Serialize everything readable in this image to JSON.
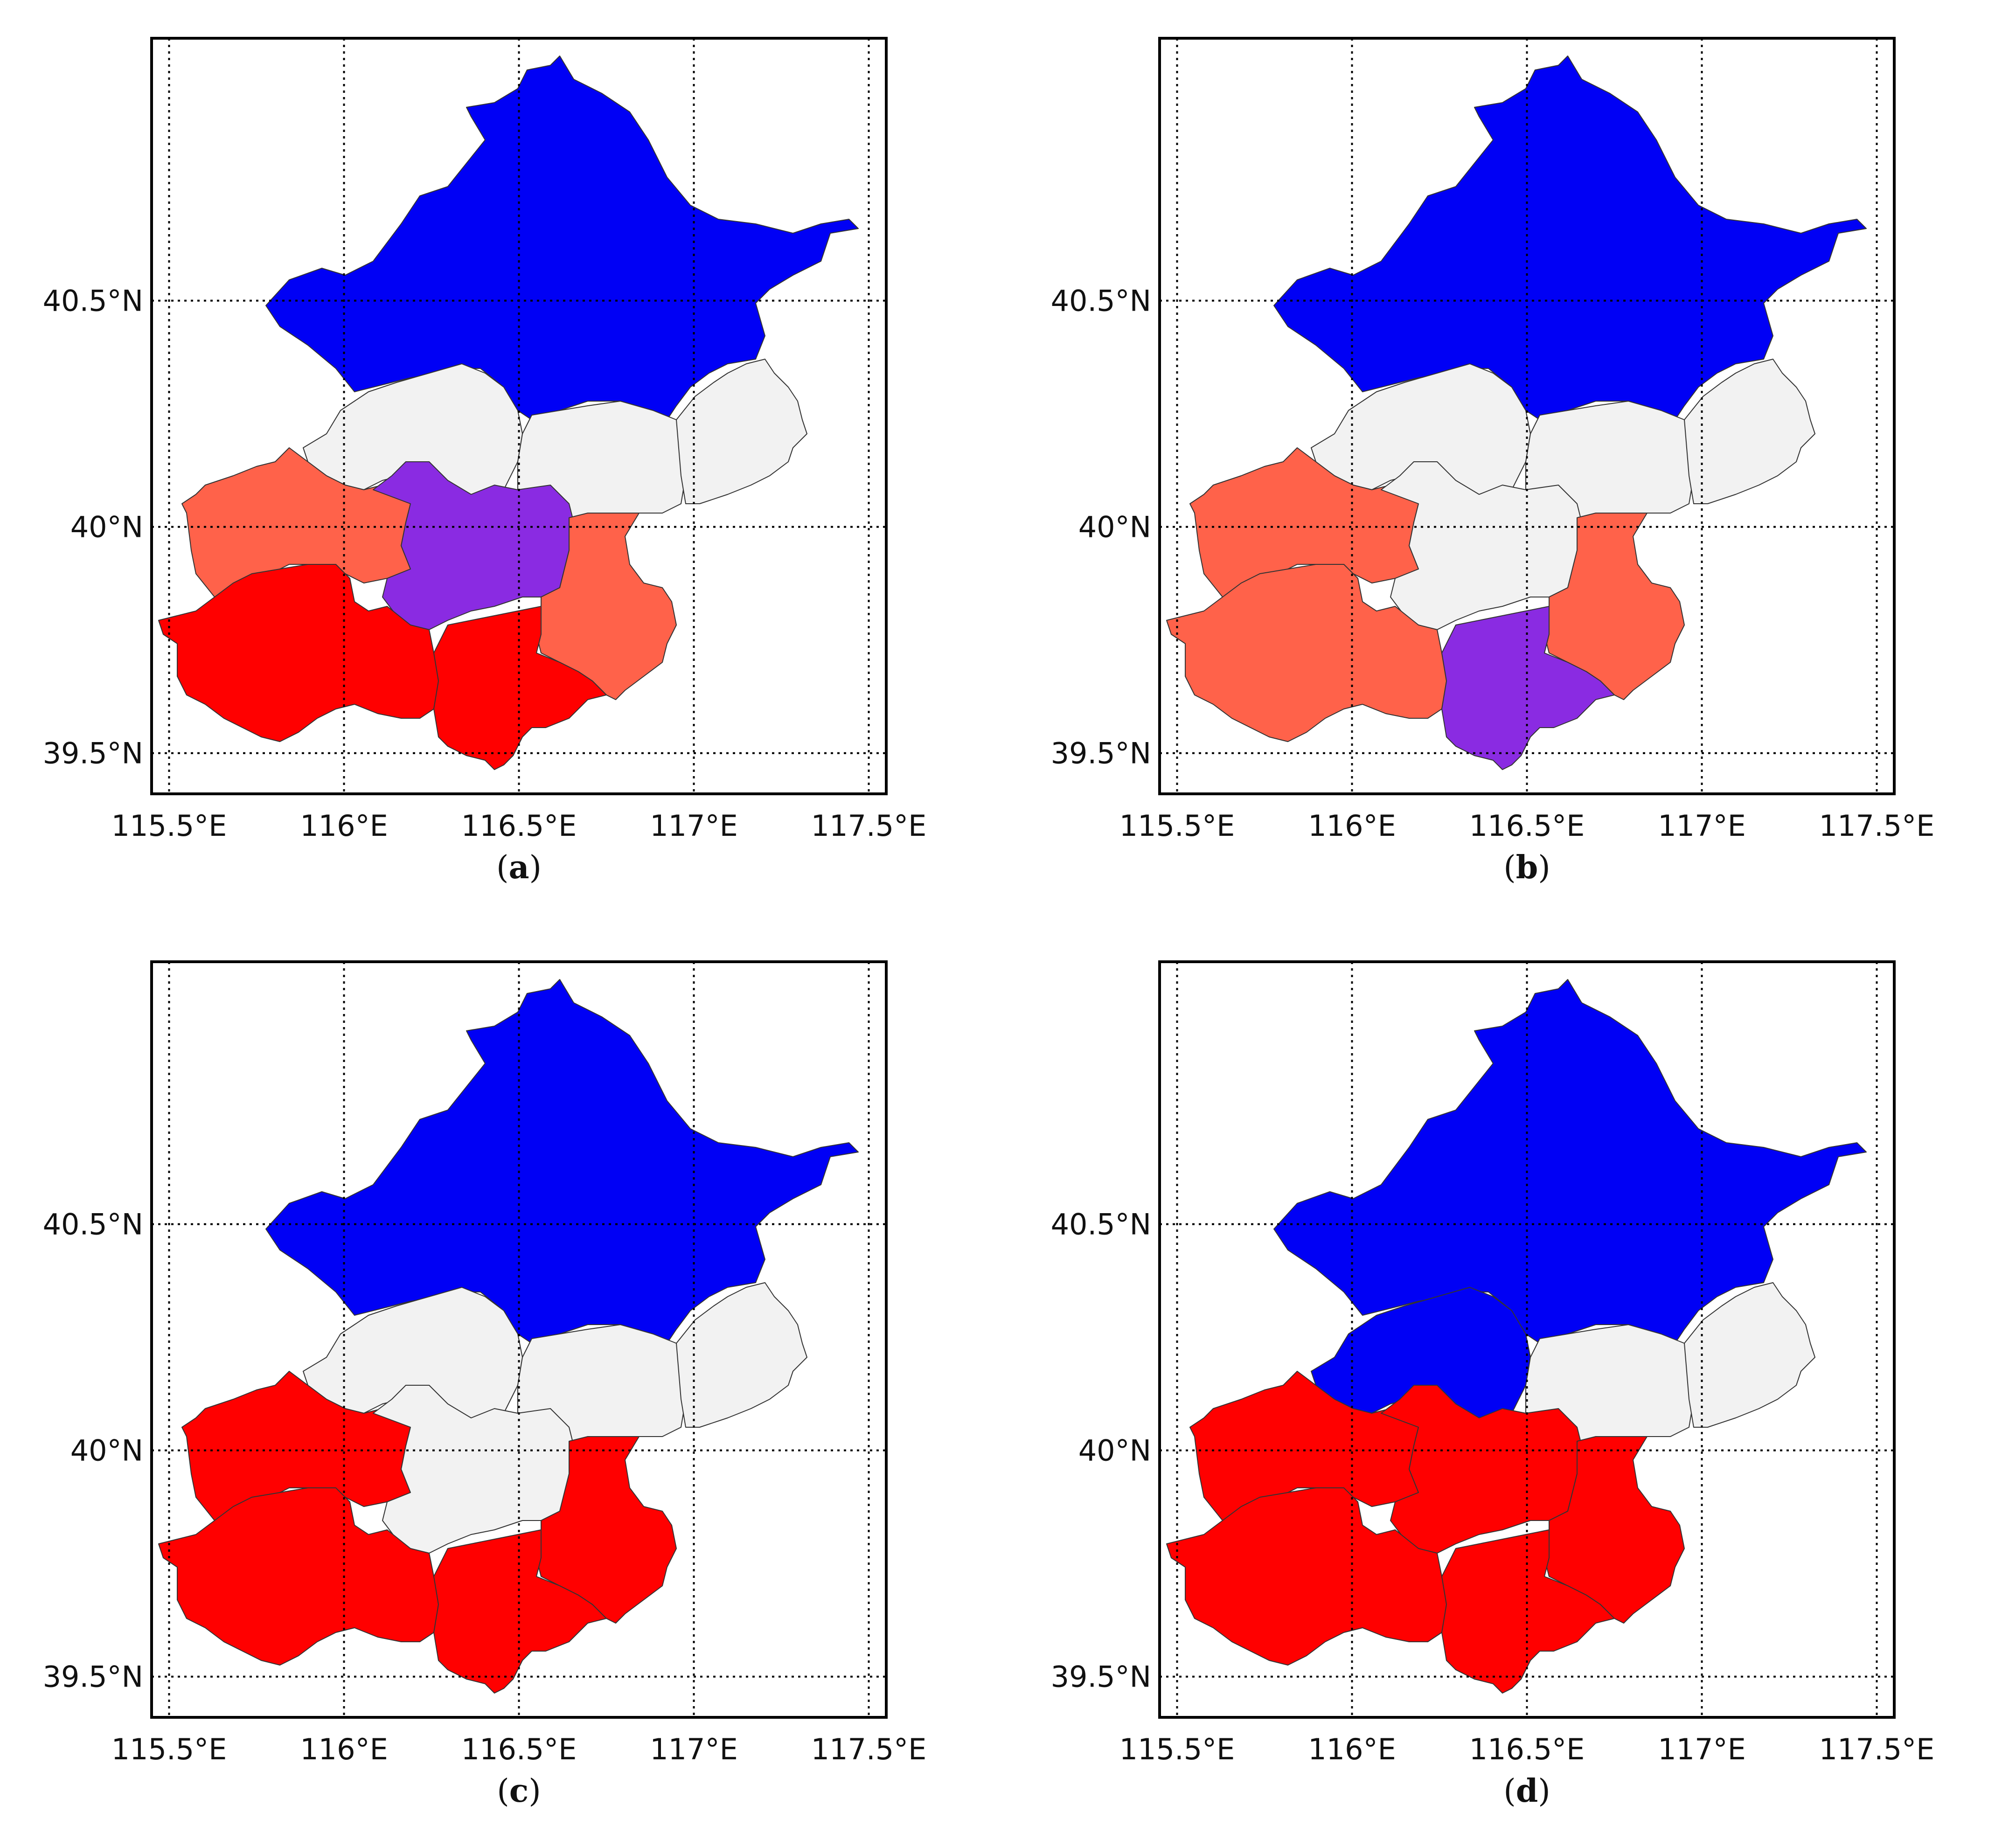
{
  "axes": {
    "lon_ticks": [
      "115.5°E",
      "116°E",
      "116.5°E",
      "117°E",
      "117.5°E"
    ],
    "lat_ticks": [
      "40.5°N",
      "40°N",
      "39.5°N"
    ]
  },
  "legend_colors": {
    "blue": "#0000f5",
    "light": "#f2f2f2",
    "salmon": "#ff624a",
    "red": "#ff0000",
    "purple": "#8a2be2"
  },
  "panels": [
    {
      "label": "a",
      "fills": {
        "north": "blue",
        "mid_w": "light",
        "mid_c": "light",
        "mid_e": "light",
        "west": "salmon",
        "center": "purple",
        "east": "salmon",
        "sw": "red",
        "south": "red"
      }
    },
    {
      "label": "b",
      "fills": {
        "north": "blue",
        "mid_w": "light",
        "mid_c": "light",
        "mid_e": "light",
        "west": "salmon",
        "center": "light",
        "east": "salmon",
        "sw": "salmon",
        "south": "purple"
      }
    },
    {
      "label": "c",
      "fills": {
        "north": "blue",
        "mid_w": "light",
        "mid_c": "light",
        "mid_e": "light",
        "west": "red",
        "center": "light",
        "east": "red",
        "sw": "red",
        "south": "red"
      }
    },
    {
      "label": "d",
      "fills": {
        "north": "blue",
        "mid_w": "blue",
        "mid_c": "light",
        "mid_e": "light",
        "west": "red",
        "center": "red",
        "east": "red",
        "sw": "red",
        "south": "red"
      }
    }
  ]
}
